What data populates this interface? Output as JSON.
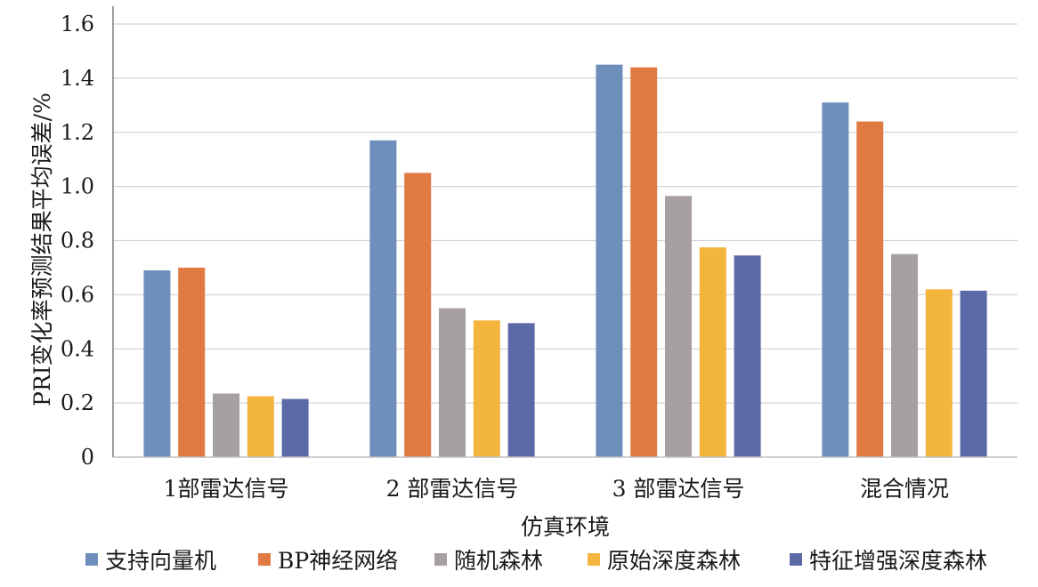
{
  "chart_data": {
    "type": "bar",
    "title": "",
    "xlabel": "仿真环境",
    "ylabel": "PRI变化率预测结果平均误差/%",
    "ylim": [
      0,
      1.6
    ],
    "yticks": [
      "0",
      "0.2",
      "0.4",
      "0.6",
      "0.8",
      "1.0",
      "1.2",
      "1.4",
      "1.6"
    ],
    "grid": true,
    "legend_position": "bottom",
    "categories": [
      "1部雷达信号",
      "2 部雷达信号",
      "3 部雷达信号",
      "混合情况"
    ],
    "series": [
      {
        "name": "支持向量机",
        "color": "#6e8fbc",
        "values": [
          0.69,
          1.17,
          1.45,
          1.31
        ]
      },
      {
        "name": "BP神经网络",
        "color": "#e07a42",
        "values": [
          0.7,
          1.05,
          1.44,
          1.24
        ]
      },
      {
        "name": "随机森林",
        "color": "#a7a0a0",
        "values": [
          0.235,
          0.55,
          0.965,
          0.75
        ]
      },
      {
        "name": "原始深度森林",
        "color": "#f4b53f",
        "values": [
          0.225,
          0.505,
          0.775,
          0.62
        ]
      },
      {
        "name": "特征增强深度森林",
        "color": "#5b69a6",
        "values": [
          0.215,
          0.495,
          0.745,
          0.615
        ]
      }
    ]
  }
}
